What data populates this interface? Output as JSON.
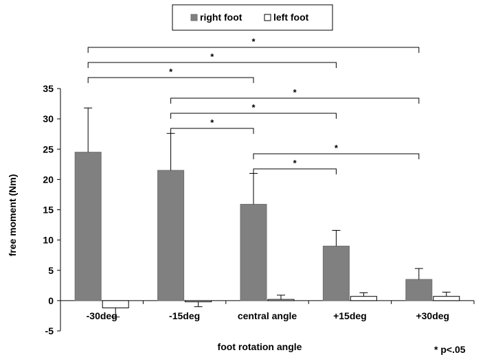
{
  "chart_data": {
    "type": "bar",
    "title": "",
    "xlabel": "foot rotation angle",
    "ylabel": "free moment (Nm)",
    "ylim": [
      -5,
      35
    ],
    "yticks": [
      -5,
      0,
      5,
      10,
      15,
      20,
      25,
      30,
      35
    ],
    "grid": false,
    "legend_position": "top-center",
    "categories": [
      "-30deg",
      "-15deg",
      "central angle",
      "+15deg",
      "+30deg"
    ],
    "series": [
      {
        "name": "right foot",
        "color": "#808080",
        "values": [
          24.5,
          21.5,
          15.9,
          9.0,
          3.5
        ],
        "errors": [
          7.3,
          6.1,
          5.1,
          2.6,
          1.8
        ]
      },
      {
        "name": "left foot",
        "color": "#ffffff",
        "values": [
          -1.2,
          -0.2,
          0.2,
          0.7,
          0.7
        ],
        "errors": [
          1.5,
          0.8,
          0.7,
          0.6,
          0.7
        ]
      }
    ],
    "significance": [
      {
        "from": 0,
        "to": 4,
        "label": "*"
      },
      {
        "from": 0,
        "to": 3,
        "label": "*"
      },
      {
        "from": 0,
        "to": 2,
        "label": "*"
      },
      {
        "from": 1,
        "to": 4,
        "label": "*"
      },
      {
        "from": 1,
        "to": 3,
        "label": "*"
      },
      {
        "from": 1,
        "to": 2,
        "label": "*"
      },
      {
        "from": 2,
        "to": 4,
        "label": "*"
      },
      {
        "from": 2,
        "to": 3,
        "label": "*"
      }
    ],
    "note": "* p<.05"
  }
}
